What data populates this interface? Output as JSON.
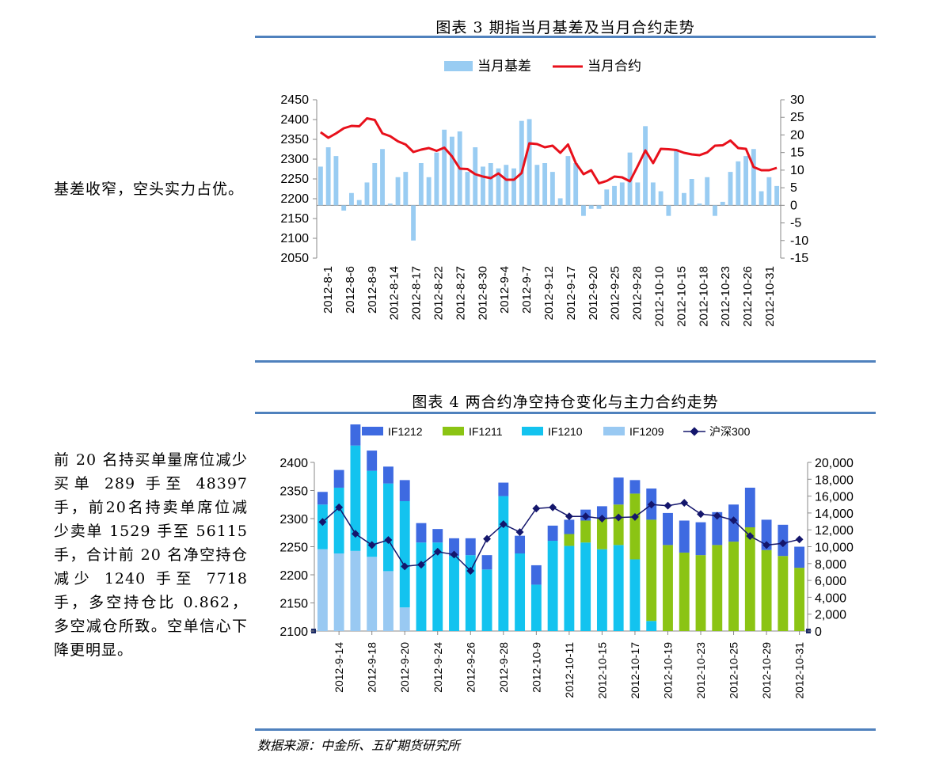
{
  "fig3": {
    "caption": "图表 3  期指当月基差及当月合约走势",
    "side_text": "基差收窄，空头实力占优。"
  },
  "fig4": {
    "caption": "图表 4  两合约净空持仓变化与主力合约走势",
    "side_text": "前 20 名持买单量席位减少买单 289 手至 48397手，前20名持卖单席位减少卖单 1529 手至 56115 手，合计前 20 名净空持仓减少 1240 手至 7718 手，多空持仓比 0.862，多空减仓所致。空单信心下降更明显。"
  },
  "source": "数据来源：中金所、五矿期货研究所",
  "chart_data": [
    {
      "type": "bar+line",
      "title": "图表 3  期指当月基差及当月合约走势",
      "legend_position": "top-center",
      "colors": {
        "bar": "#99ccf2",
        "line": "#e8101b"
      },
      "left_axis": {
        "min": 2050,
        "max": 2450,
        "ticks": [
          "2450",
          "2400",
          "2350",
          "2300",
          "2250",
          "2200",
          "2150",
          "2100",
          "2050"
        ]
      },
      "right_axis": {
        "min": -15,
        "max": 30,
        "ticks": [
          "30",
          "25",
          "20",
          "15",
          "10",
          "5",
          "0",
          "-5",
          "-10",
          "-15"
        ]
      },
      "x_tick_labels": [
        "2012-8-1",
        "2012-8-6",
        "2012-8-9",
        "2012-8-14",
        "2012-8-17",
        "2012-8-22",
        "2012-8-27",
        "2012-8-30",
        "2012-9-4",
        "2012-9-7",
        "2012-9-12",
        "2012-9-17",
        "2012-9-20",
        "2012-9-25",
        "2012-9-28",
        "2012-10-10",
        "2012-10-15",
        "2012-10-18",
        "2012-10-23",
        "2012-10-26",
        "2012-10-31"
      ],
      "series": [
        {
          "name": "当月基差",
          "kind": "bar",
          "axis": "right",
          "values": [
            11,
            16.5,
            14,
            -1.5,
            3.5,
            1.5,
            6.5,
            12,
            16,
            0.5,
            8,
            9.5,
            -10,
            12,
            8,
            15,
            21.5,
            19.5,
            21,
            9.5,
            16.5,
            11,
            12,
            10.5,
            11.5,
            10.5,
            24,
            24.5,
            11.5,
            12,
            9.5,
            2,
            14,
            12,
            -3,
            -1,
            -1,
            4.5,
            5.5,
            6.5,
            15,
            6.5,
            22.5,
            6.5,
            4,
            -3,
            16,
            3.5,
            7.5,
            0.5,
            8,
            -3,
            1,
            9.5,
            12.5,
            14,
            16,
            4,
            8,
            5.5
          ]
        },
        {
          "name": "当月合约",
          "kind": "line",
          "axis": "left",
          "values": [
            2368,
            2354,
            2365,
            2378,
            2384,
            2383,
            2403,
            2399,
            2365,
            2358,
            2345,
            2337,
            2318,
            2324,
            2328,
            2321,
            2329,
            2307,
            2276,
            2275,
            2262,
            2256,
            2252,
            2264,
            2248,
            2248,
            2265,
            2340,
            2338,
            2330,
            2334,
            2316,
            2337,
            2290,
            2262,
            2272,
            2239,
            2245,
            2256,
            2254,
            2244,
            2282,
            2322,
            2290,
            2326,
            2325,
            2323,
            2316,
            2312,
            2310,
            2317,
            2334,
            2335,
            2347,
            2328,
            2326,
            2280,
            2272,
            2272,
            2278
          ]
        }
      ]
    },
    {
      "type": "stacked-bar+line",
      "title": "图表 4  两合约净空持仓变化与主力合约走势",
      "legend_position": "top-center",
      "colors": {
        "IF1212": "#3e6ae1",
        "IF1211": "#8bc414",
        "IF1210": "#13c3ef",
        "IF1209": "#99c9f2",
        "沪深300": "#14166c"
      },
      "left_axis": {
        "min": 2100,
        "max": 2400,
        "ticks": [
          "2400",
          "2350",
          "2300",
          "2250",
          "2200",
          "2150",
          "2100"
        ]
      },
      "right_axis": {
        "min": 0,
        "max": 20000,
        "ticks": [
          "20,000",
          "18,000",
          "16,000",
          "14,000",
          "12,000",
          "10,000",
          "8,000",
          "6,000",
          "4,000",
          "2,000",
          "0"
        ]
      },
      "x_tick_labels": [
        "2012-9-14",
        "2012-9-18",
        "2012-9-20",
        "2012-9-24",
        "2012-9-26",
        "2012-9-28",
        "2012-10-9",
        "2012-10-11",
        "2012-10-15",
        "2012-10-17",
        "2012-10-19",
        "2012-10-23",
        "2012-10-25",
        "2012-10-29",
        "2012-10-31"
      ],
      "stack_order": [
        "IF1209",
        "IF1210",
        "IF1211",
        "IF1212"
      ],
      "series": [
        {
          "name": "IF1209",
          "kind": "bar",
          "axis": "right",
          "values": [
            9700,
            9200,
            9500,
            8800,
            7100,
            2800,
            0,
            0,
            0,
            0,
            0,
            0,
            0,
            0,
            0,
            0,
            0,
            0,
            0,
            0,
            0,
            0,
            0,
            0,
            0,
            0,
            0,
            0,
            0,
            0
          ]
        },
        {
          "name": "IF1210",
          "kind": "bar",
          "axis": "right",
          "values": [
            5300,
            7800,
            12500,
            10200,
            10400,
            12600,
            10500,
            10500,
            8900,
            9000,
            7300,
            16000,
            9200,
            5500,
            10700,
            10100,
            10500,
            9700,
            10200,
            8500,
            1200,
            0,
            0,
            0,
            0,
            0,
            0,
            0,
            0,
            0
          ]
        },
        {
          "name": "IF1211",
          "kind": "bar",
          "axis": "right",
          "values": [
            0,
            0,
            0,
            0,
            0,
            0,
            0,
            0,
            0,
            0,
            0,
            0,
            0,
            0,
            0,
            1400,
            2600,
            3600,
            4800,
            7800,
            12000,
            10200,
            9300,
            9000,
            10200,
            10600,
            12300,
            9600,
            8900,
            7500
          ]
        },
        {
          "name": "IF1212",
          "kind": "bar",
          "axis": "right",
          "values": [
            1500,
            2100,
            2500,
            2400,
            2000,
            2500,
            2300,
            1600,
            2100,
            2000,
            1700,
            1600,
            2100,
            2300,
            1800,
            1700,
            1300,
            1500,
            3200,
            1600,
            3700,
            3800,
            3800,
            3900,
            3900,
            4400,
            4700,
            3600,
            3700,
            2500
          ]
        },
        {
          "name": "沪深300",
          "kind": "line",
          "axis": "left",
          "values": [
            2294,
            2320,
            2273,
            2253,
            2262,
            2215,
            2218,
            2241,
            2236,
            2207,
            2264,
            2290,
            2276,
            2318,
            2320,
            2304,
            2304,
            2300,
            2302,
            2303,
            2325,
            2323,
            2328,
            2308,
            2305,
            2297,
            2269,
            2253,
            2256,
            2263
          ]
        }
      ]
    }
  ]
}
